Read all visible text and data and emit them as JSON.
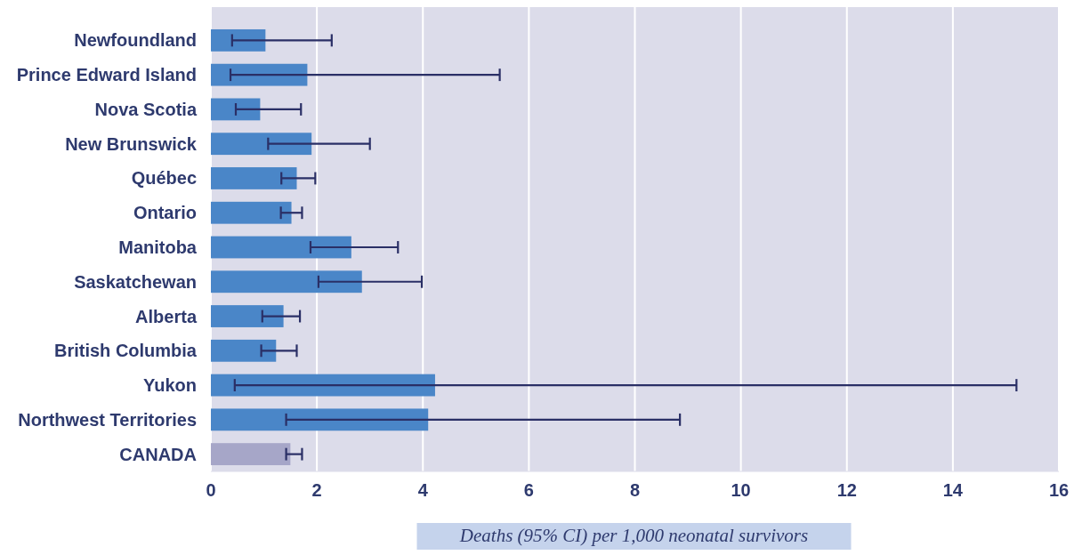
{
  "chart_data": {
    "type": "bar",
    "orientation": "horizontal",
    "categories": [
      "Newfoundland",
      "Prince Edward Island",
      "Nova Scotia",
      "New Brunswick",
      "Québec",
      "Ontario",
      "Manitoba",
      "Saskatchewan",
      "Alberta",
      "British Columbia",
      "Yukon",
      "Northwest Territories",
      "CANADA"
    ],
    "values": [
      1.03,
      1.82,
      0.93,
      1.9,
      1.62,
      1.52,
      2.65,
      2.85,
      1.37,
      1.23,
      4.23,
      4.1,
      1.5
    ],
    "colors": [
      "#4a86c8",
      "#4a86c8",
      "#4a86c8",
      "#4a86c8",
      "#4a86c8",
      "#4a86c8",
      "#4a86c8",
      "#4a86c8",
      "#4a86c8",
      "#4a86c8",
      "#4a86c8",
      "#4a86c8",
      "#a6a6c8"
    ],
    "errors": [
      [
        0.4,
        2.28
      ],
      [
        0.37,
        5.45
      ],
      [
        0.47,
        1.7
      ],
      [
        1.08,
        3.0
      ],
      [
        1.33,
        1.97
      ],
      [
        1.32,
        1.72
      ],
      [
        1.88,
        3.53
      ],
      [
        2.03,
        3.98
      ],
      [
        0.97,
        1.68
      ],
      [
        0.95,
        1.62
      ],
      [
        0.45,
        15.2
      ],
      [
        1.42,
        8.85
      ],
      [
        1.42,
        1.72
      ]
    ],
    "xlim": [
      0,
      16
    ],
    "xticks": [
      0,
      2,
      4,
      6,
      8,
      10,
      12,
      14,
      16
    ],
    "grid": "x",
    "xlabel": "Deaths (95% CI) per 1,000 neonatal survivors"
  }
}
